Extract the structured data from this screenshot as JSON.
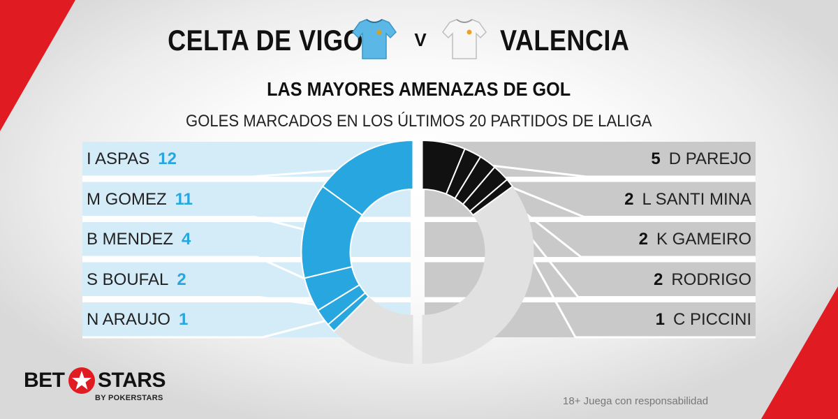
{
  "header": {
    "home_team": "CELTA DE VIGO",
    "versus": "V",
    "away_team": "VALENCIA",
    "headline": "LAS MAYORES AMENAZAS DE GOL",
    "subheadline": "GOLES MARCADOS EN LOS ÚLTIMOS 20 PARTIDOS DE LALIGA"
  },
  "colors": {
    "home_accent": "#27a6e0",
    "home_panel": "#d4ecf8",
    "away_accent": "#111111",
    "away_panel": "#c9c9c9",
    "rest": "#e1e1e1",
    "brand_red": "#e01b22"
  },
  "icons": {
    "home_shirt": "sky-blue-football-shirt-icon",
    "away_shirt": "white-football-shirt-icon",
    "brand_star": "red-star-icon"
  },
  "chart_data": [
    {
      "type": "donut",
      "team": "CELTA DE VIGO",
      "categories": [
        "I ASPAS",
        "M GOMEZ",
        "B MENDEZ",
        "S BOUFAL",
        "N ARAUJO"
      ],
      "values": [
        12,
        11,
        4,
        2,
        1
      ]
    },
    {
      "type": "donut",
      "team": "VALENCIA",
      "categories": [
        "D PAREJO",
        "L SANTI MINA",
        "K GAMEIRO",
        "RODRIGO",
        "C PICCINI"
      ],
      "values": [
        5,
        2,
        2,
        2,
        1
      ]
    }
  ],
  "brand": {
    "name_part1": "BET",
    "name_part2": "STARS",
    "byline": "BY POKERSTARS"
  },
  "footer": {
    "disclaimer": "18+ Juega con responsabilidad"
  }
}
